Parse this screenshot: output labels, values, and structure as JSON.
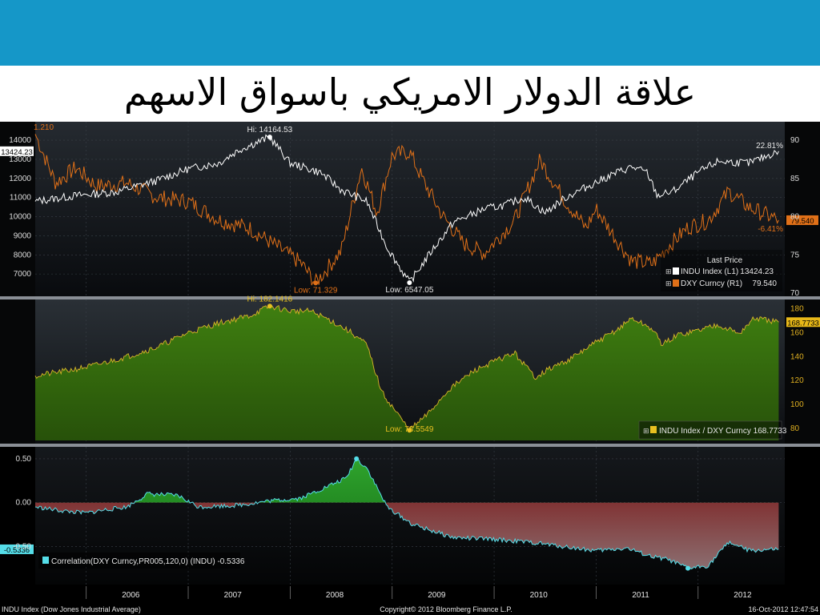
{
  "slide": {
    "title": "علاقة الدولار الامريكي باسواق الاسهم",
    "colors": {
      "topbar": "#1597c8",
      "background": "#000000"
    }
  },
  "chart_data": [
    {
      "type": "line",
      "panel": "top",
      "x_label_years": [
        "2006",
        "2007",
        "2008",
        "2009",
        "2010",
        "2011",
        "2012"
      ],
      "left_axis": {
        "ticks": [
          7000,
          8000,
          9000,
          10000,
          11000,
          12000,
          13000,
          14000
        ],
        "ylim": [
          6000,
          14800
        ]
      },
      "right_axis": {
        "ticks": [
          70,
          75,
          80,
          85,
          90
        ],
        "ylim": [
          70,
          92
        ]
      },
      "series": [
        {
          "name": "INDU Index (L1)",
          "axis": "left",
          "color": "#ffffff",
          "last": "13424.23",
          "x": [
            2005.5,
            2005.9,
            2006.3,
            2006.7,
            2007.0,
            2007.3,
            2007.5,
            2007.8,
            2008.0,
            2008.3,
            2008.5,
            2008.75,
            2008.95,
            2009.17,
            2009.4,
            2009.6,
            2009.9,
            2010.1,
            2010.3,
            2010.5,
            2010.7,
            2011.0,
            2011.2,
            2011.35,
            2011.5,
            2011.6,
            2011.75,
            2012.0,
            2012.2,
            2012.5,
            2012.79
          ],
          "values": [
            10800,
            11100,
            11300,
            11900,
            12500,
            12800,
            13500,
            14164.53,
            12800,
            12300,
            11400,
            10800,
            8400,
            6547.05,
            8300,
            9700,
            10400,
            10600,
            11000,
            10200,
            11000,
            11800,
            12300,
            12600,
            12300,
            11100,
            11300,
            12300,
            12900,
            12800,
            13424.23
          ]
        },
        {
          "name": "DXY Curncy (R1)",
          "axis": "right",
          "color": "#e07018",
          "last": "79.540",
          "x": [
            2005.5,
            2005.7,
            2005.9,
            2006.1,
            2006.4,
            2006.7,
            2007.0,
            2007.3,
            2007.6,
            2007.9,
            2008.1,
            2008.25,
            2008.5,
            2008.7,
            2008.85,
            2009.0,
            2009.17,
            2009.3,
            2009.5,
            2009.7,
            2009.9,
            2010.2,
            2010.45,
            2010.7,
            2010.9,
            2011.0,
            2011.2,
            2011.35,
            2011.55,
            2011.7,
            2011.9,
            2012.1,
            2012.3,
            2012.5,
            2012.79
          ],
          "values": [
            90.8,
            84.4,
            86.4,
            84.0,
            84.4,
            82.5,
            82.0,
            79.6,
            78.5,
            75.8,
            74.0,
            71.329,
            75.5,
            86.4,
            80.5,
            88.0,
            88.5,
            84.8,
            80.0,
            76.5,
            75.2,
            79.5,
            87.4,
            82.0,
            78.5,
            81.0,
            77.0,
            74.2,
            73.8,
            76.0,
            78.6,
            79.5,
            83.3,
            81.2,
            79.54
          ]
        }
      ],
      "annotations": [
        "Hi: 14164.53",
        "Low: 71.329",
        "Low: 6547.05",
        "1.210",
        "22.81%",
        "-6.41%"
      ],
      "legend": {
        "header": "Last Price",
        "placement": "bottom-right"
      }
    },
    {
      "type": "area",
      "panel": "middle",
      "right_axis": {
        "ticks": [
          80,
          100,
          120,
          140,
          160,
          180
        ],
        "ylim": [
          70,
          185
        ]
      },
      "series": [
        {
          "name": "INDU Index / DXY Curncy",
          "color": "#3c7d12",
          "last": "168.7733",
          "x": [
            2005.5,
            2005.8,
            2006.1,
            2006.4,
            2006.7,
            2007.0,
            2007.3,
            2007.6,
            2007.8,
            2008.0,
            2008.2,
            2008.4,
            2008.6,
            2008.75,
            2008.9,
            2009.17,
            2009.35,
            2009.55,
            2009.8,
            2010.0,
            2010.2,
            2010.4,
            2010.55,
            2010.75,
            2011.0,
            2011.2,
            2011.35,
            2011.55,
            2011.65,
            2011.8,
            2012.0,
            2012.2,
            2012.4,
            2012.55,
            2012.79
          ],
          "values": [
            124,
            128,
            133,
            140,
            148,
            160,
            168,
            174,
            182.1416,
            178,
            178,
            170,
            160,
            150,
            110,
            78.5549,
            92,
            112,
            128,
            136,
            143,
            123,
            130,
            138,
            152,
            162,
            172,
            163,
            150,
            158,
            162,
            167,
            159,
            172,
            168.7733
          ]
        }
      ],
      "annotations": [
        "Hi: 182.1416",
        "Low: 78.5549"
      ],
      "legend": {
        "placement": "bottom-right"
      }
    },
    {
      "type": "area",
      "panel": "bottom",
      "left_axis": {
        "ticks": [
          -0.5,
          0.0,
          0.5
        ],
        "tick_labels": [
          "-0.50",
          "0.00",
          "0.50"
        ],
        "ylim": [
          -0.9,
          0.6
        ]
      },
      "series": [
        {
          "name": "Correlation(DXY Curncy,PR005,120,0) (INDU)",
          "color": "#55dde8",
          "last": "-0.5336",
          "x": [
            2005.5,
            2005.8,
            2006.0,
            2006.2,
            2006.4,
            2006.6,
            2006.9,
            2007.1,
            2007.5,
            2007.8,
            2008.1,
            2008.3,
            2008.55,
            2008.65,
            2008.75,
            2008.95,
            2009.2,
            2009.6,
            2010.0,
            2010.4,
            2010.8,
            2011.0,
            2011.3,
            2011.55,
            2011.7,
            2011.9,
            2012.1,
            2012.3,
            2012.5,
            2012.79
          ],
          "values": [
            -0.05,
            -0.1,
            -0.12,
            -0.08,
            -0.05,
            0.1,
            0.08,
            -0.05,
            -0.03,
            0.02,
            0.05,
            0.15,
            0.28,
            0.5,
            0.4,
            -0.05,
            -0.25,
            -0.4,
            -0.42,
            -0.46,
            -0.52,
            -0.55,
            -0.52,
            -0.62,
            -0.65,
            -0.75,
            -0.72,
            -0.45,
            -0.55,
            -0.5336
          ]
        }
      ],
      "annotations": [],
      "legend": {
        "placement": "bottom-left"
      }
    }
  ],
  "footer": {
    "left": "INDU Index (Dow Jones Industrial Average)",
    "center": "Copyright© 2012 Bloomberg Finance L.P.",
    "right": "16-Oct-2012 12:47:54"
  },
  "legend_text": {
    "top_header": "Last Price",
    "top_row1_name": "INDU Index  (L1)",
    "top_row1_value": "13424.23",
    "top_row2_name": "DXY Curncy  (R1)",
    "top_row2_value": "79.540",
    "middle": "INDU Index / DXY Curncy 168.7733",
    "bottom": "Correlation(DXY Curncy,PR005,120,0) (INDU) -0.5336"
  }
}
